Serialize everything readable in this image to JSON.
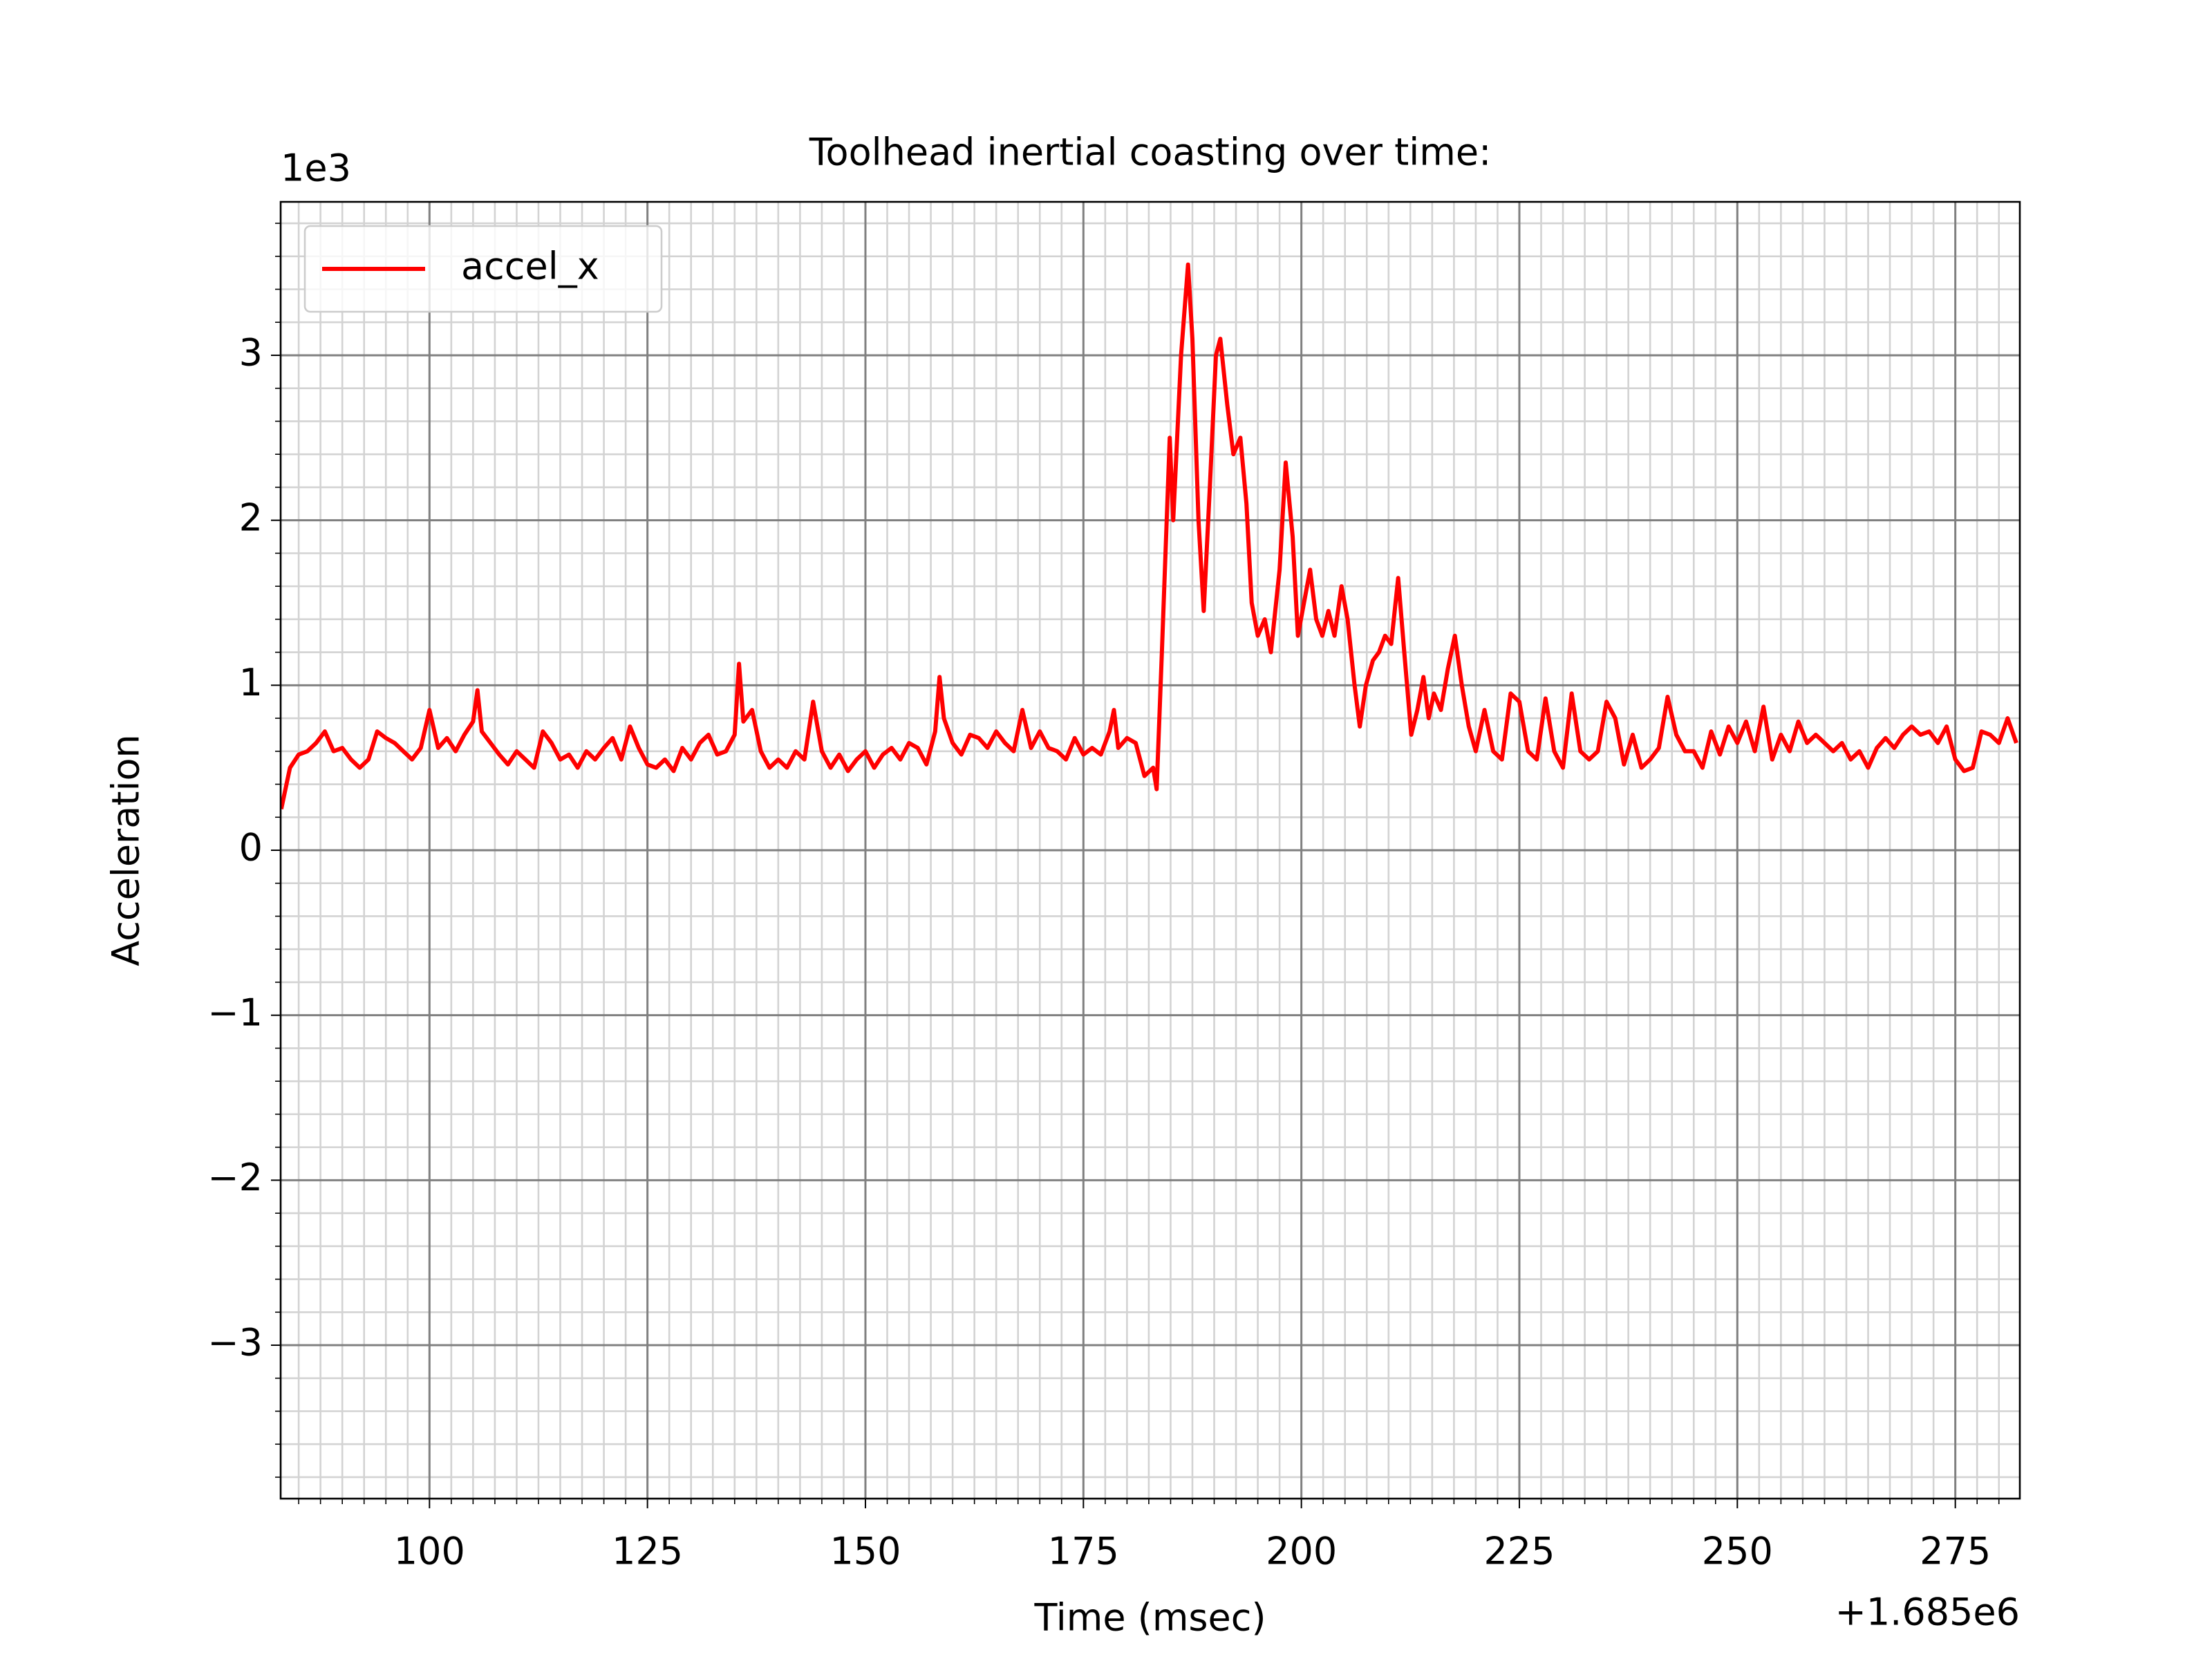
{
  "chart_data": {
    "type": "line",
    "title": "Toolhead inertial coasting over time:",
    "xlabel": "Time (msec)",
    "ylabel": "Acceleration",
    "x_offset_text": "+1.685e6",
    "y_offset_text": "1e3",
    "x": [
      83,
      84,
      85,
      86,
      87,
      88,
      89,
      90,
      91,
      92,
      93,
      94,
      95,
      96,
      97,
      98,
      99,
      100,
      101,
      102,
      103,
      104,
      105,
      105.5,
      106,
      107,
      108,
      109,
      110,
      111,
      112,
      113,
      114,
      115,
      116,
      117,
      118,
      119,
      120,
      121,
      122,
      123,
      124,
      125,
      126,
      127,
      128,
      129,
      130,
      131,
      132,
      133,
      134,
      135,
      135.5,
      136,
      137,
      138,
      139,
      140,
      141,
      142,
      143,
      144,
      145,
      146,
      147,
      148,
      149,
      150,
      151,
      152,
      153,
      154,
      155,
      156,
      157,
      158,
      158.5,
      159,
      160,
      161,
      162,
      163,
      164,
      165,
      166,
      167,
      168,
      169,
      170,
      171,
      172,
      173,
      174,
      175,
      176,
      177,
      178,
      178.5,
      179,
      180,
      181,
      182,
      183,
      183.4,
      184,
      184.9,
      185.3,
      186.2,
      187,
      187.5,
      188.2,
      188.8,
      189.5,
      190.2,
      190.7,
      191.5,
      192.2,
      193,
      193.7,
      194.3,
      195,
      195.8,
      196.5,
      197.5,
      198.2,
      199,
      199.6,
      200.3,
      201,
      201.7,
      202.4,
      203.1,
      203.8,
      204.6,
      205.3,
      206.1,
      206.7,
      207.4,
      208.2,
      208.9,
      209.6,
      210.3,
      211.1,
      211.8,
      212.6,
      213.3,
      214,
      214.6,
      215.2,
      216,
      216.8,
      217.6,
      218.4,
      219.2,
      220,
      221,
      222,
      223,
      224,
      225,
      226,
      227,
      228,
      229,
      230,
      231,
      232,
      233,
      234,
      235,
      236,
      237,
      238,
      239,
      240,
      241,
      242,
      243,
      244,
      245,
      246,
      247,
      248,
      249,
      250,
      251,
      252,
      253,
      254,
      255,
      256,
      257,
      258,
      259,
      260,
      261,
      262,
      263,
      264,
      265,
      266,
      267,
      268,
      269,
      270,
      271,
      272,
      273,
      274,
      275,
      276,
      277,
      278,
      279,
      280,
      281,
      282
    ],
    "series": [
      {
        "name": "accel_x",
        "color": "#ff0000",
        "values": [
          0.25,
          0.5,
          0.58,
          0.6,
          0.65,
          0.72,
          0.6,
          0.62,
          0.55,
          0.5,
          0.55,
          0.72,
          0.68,
          0.65,
          0.6,
          0.55,
          0.62,
          0.85,
          0.62,
          0.68,
          0.6,
          0.7,
          0.78,
          0.97,
          0.72,
          0.65,
          0.58,
          0.52,
          0.6,
          0.55,
          0.5,
          0.72,
          0.65,
          0.55,
          0.58,
          0.5,
          0.6,
          0.55,
          0.62,
          0.68,
          0.55,
          0.75,
          0.62,
          0.52,
          0.5,
          0.55,
          0.48,
          0.62,
          0.55,
          0.65,
          0.7,
          0.58,
          0.6,
          0.7,
          1.13,
          0.78,
          0.85,
          0.6,
          0.5,
          0.55,
          0.5,
          0.6,
          0.55,
          0.9,
          0.6,
          0.5,
          0.58,
          0.48,
          0.55,
          0.6,
          0.5,
          0.58,
          0.62,
          0.55,
          0.65,
          0.62,
          0.52,
          0.72,
          1.05,
          0.8,
          0.65,
          0.58,
          0.7,
          0.68,
          0.62,
          0.72,
          0.65,
          0.6,
          0.85,
          0.62,
          0.72,
          0.62,
          0.6,
          0.55,
          0.68,
          0.58,
          0.62,
          0.58,
          0.72,
          0.85,
          0.62,
          0.68,
          0.65,
          0.45,
          0.5,
          0.37,
          1.2,
          2.5,
          2.0,
          3.0,
          3.55,
          3.1,
          2.0,
          1.45,
          2.2,
          3.0,
          3.1,
          2.7,
          2.4,
          2.5,
          2.1,
          1.5,
          1.3,
          1.4,
          1.2,
          1.7,
          2.35,
          1.9,
          1.3,
          1.5,
          1.7,
          1.4,
          1.3,
          1.45,
          1.3,
          1.6,
          1.4,
          1.0,
          0.75,
          1.0,
          1.15,
          1.2,
          1.3,
          1.25,
          1.65,
          1.2,
          0.7,
          0.85,
          1.05,
          0.8,
          0.95,
          0.85,
          1.1,
          1.3,
          1.0,
          0.75,
          0.6,
          0.85,
          0.6,
          0.55,
          0.95,
          0.9,
          0.6,
          0.55,
          0.92,
          0.6,
          0.5,
          0.95,
          0.6,
          0.55,
          0.6,
          0.9,
          0.8,
          0.52,
          0.7,
          0.5,
          0.55,
          0.62,
          0.93,
          0.7,
          0.6,
          0.6,
          0.5,
          0.72,
          0.58,
          0.75,
          0.65,
          0.78,
          0.6,
          0.87,
          0.55,
          0.7,
          0.6,
          0.78,
          0.65,
          0.7,
          0.65,
          0.6,
          0.65,
          0.55,
          0.6,
          0.5,
          0.62,
          0.68,
          0.62,
          0.7,
          0.75,
          0.7,
          0.72,
          0.65,
          0.75,
          0.55,
          0.48,
          0.5,
          0.72,
          0.7,
          0.65,
          0.8,
          0.65
        ]
      }
    ],
    "xlim": [
      82.93,
      282.4
    ],
    "ylim": [
      -3.93,
      3.93
    ],
    "xticks": [
      100,
      125,
      150,
      175,
      200,
      225,
      250,
      275
    ],
    "yticks": [
      {
        "value": -3,
        "label": "−3"
      },
      {
        "value": -2,
        "label": "−2"
      },
      {
        "value": -1,
        "label": "−1"
      },
      0,
      1,
      2,
      3
    ],
    "xminorticks": [
      85,
      87.5,
      90,
      92.5,
      95,
      97.5,
      102.5,
      105,
      107.5,
      110,
      112.5,
      115,
      117.5,
      120,
      122.5,
      127.5,
      130,
      132.5,
      135,
      137.5,
      140,
      142.5,
      145,
      147.5,
      152.5,
      155,
      157.5,
      160,
      162.5,
      165,
      167.5,
      170,
      172.5,
      177.5,
      180,
      182.5,
      185,
      187.5,
      190,
      192.5,
      195,
      197.5,
      202.5,
      205,
      207.5,
      210,
      212.5,
      215,
      217.5,
      220,
      222.5,
      227.5,
      230,
      232.5,
      235,
      237.5,
      240,
      242.5,
      245,
      247.5,
      252.5,
      255,
      257.5,
      260,
      262.5,
      265,
      267.5,
      270,
      272.5,
      277.5,
      280
    ],
    "yminorticks": [
      -3.8,
      -3.6,
      -3.4,
      -3.2,
      -2.8,
      -2.6,
      -2.4,
      -2.2,
      -1.8,
      -1.6,
      -1.4,
      -1.2,
      -0.8,
      -0.6,
      -0.4,
      -0.2,
      0.2,
      0.4,
      0.6,
      0.8,
      1.2,
      1.4,
      1.6,
      1.8,
      2.2,
      2.4,
      2.6,
      2.8,
      3.2,
      3.4,
      3.6,
      3.8
    ],
    "grid": true,
    "minor_grid": true,
    "legend": "upper left"
  }
}
